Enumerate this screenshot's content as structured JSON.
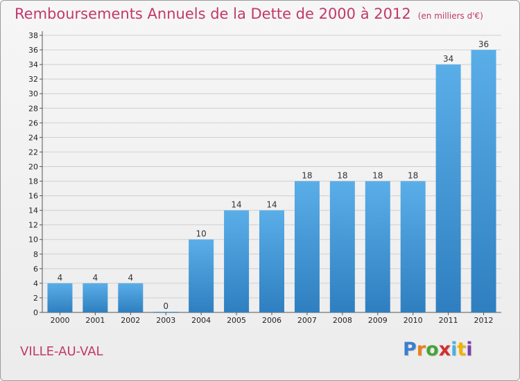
{
  "header": {
    "title": "Remboursements Annuels de la Dette de 2000 à 2012",
    "unit": "(en milliers d'€)"
  },
  "footer": {
    "city": "VILLE-AU-VAL",
    "logo": {
      "letters": [
        "P",
        "r",
        "o",
        "x",
        "i",
        "t",
        "i"
      ],
      "colors": [
        "#3a7fd0",
        "#e9801d",
        "#44a536",
        "#d22f2f",
        "#4cb0e0",
        "#f0b400",
        "#7a3fb0"
      ]
    }
  },
  "chart_data": {
    "type": "bar",
    "categories": [
      "2000",
      "2001",
      "2002",
      "2003",
      "2004",
      "2005",
      "2006",
      "2007",
      "2008",
      "2009",
      "2010",
      "2011",
      "2012"
    ],
    "values": [
      4,
      4,
      4,
      0,
      10,
      14,
      14,
      18,
      18,
      18,
      18,
      34,
      36
    ],
    "data_labels": [
      "4",
      "4",
      "4",
      "0",
      "10",
      "14",
      "14",
      "18",
      "18",
      "18",
      "18",
      "34",
      "36"
    ],
    "yticks": [
      0,
      2,
      4,
      6,
      8,
      10,
      12,
      14,
      16,
      18,
      20,
      22,
      24,
      26,
      28,
      30,
      32,
      34,
      36,
      38
    ],
    "ylim": [
      0,
      38
    ],
    "grid": true,
    "colors": {
      "bar_top": "#5aaee8",
      "bar_bottom": "#2f7fc0",
      "grid": "#cfcfcf"
    }
  }
}
